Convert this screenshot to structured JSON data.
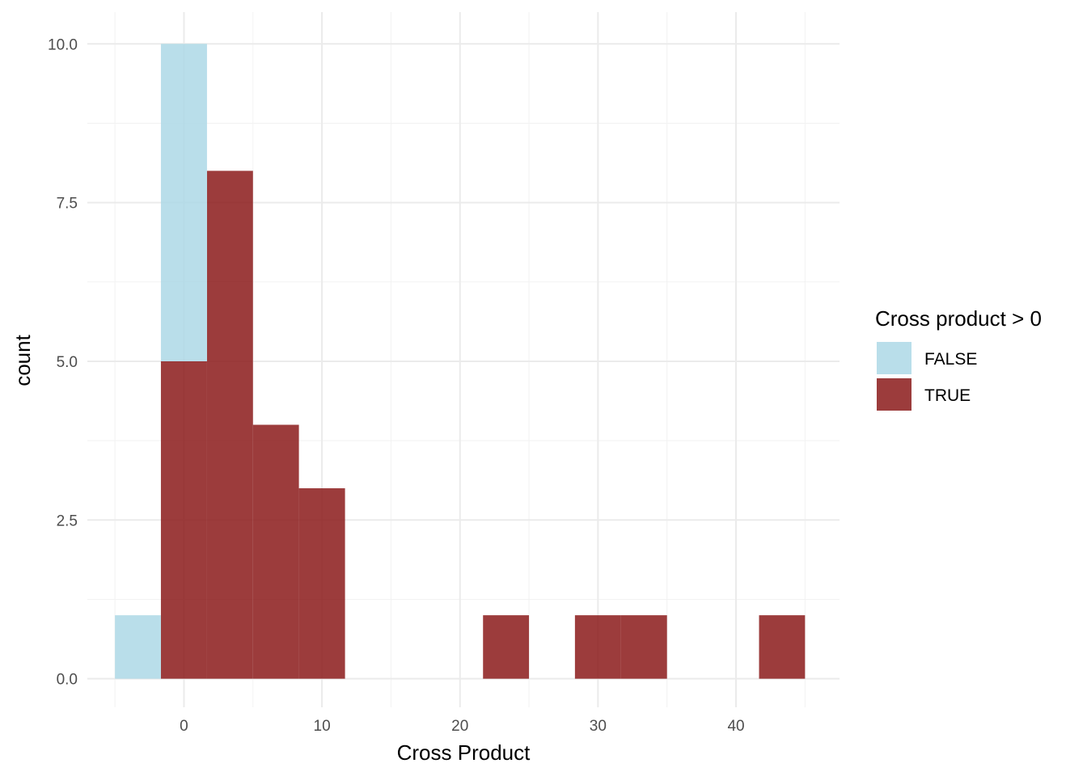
{
  "chart_data": {
    "type": "bar",
    "subtype": "histogram",
    "xlabel": "Cross Product",
    "ylabel": "count",
    "xlim": [
      -7,
      47.5
    ],
    "ylim": [
      -0.45,
      10.5
    ],
    "x_ticks": [
      0,
      10,
      20,
      30,
      40
    ],
    "y_ticks": [
      0.0,
      2.5,
      5.0,
      7.5,
      10.0
    ],
    "y_tick_labels": [
      "0.0",
      "2.5",
      "5.0",
      "7.5",
      "10.0"
    ],
    "x_tick_labels": [
      "0",
      "10",
      "20",
      "30",
      "40"
    ],
    "grid": true,
    "stacked": true,
    "legend": {
      "title": "Cross product > 0",
      "placement": "right"
    },
    "bins": [
      {
        "x0": -5.0,
        "x1": -1.67
      },
      {
        "x0": -1.67,
        "x1": 1.67
      },
      {
        "x0": 1.67,
        "x1": 5.0
      },
      {
        "x0": 5.0,
        "x1": 8.33
      },
      {
        "x0": 8.33,
        "x1": 11.67
      },
      {
        "x0": 11.67,
        "x1": 15.0
      },
      {
        "x0": 15.0,
        "x1": 18.33
      },
      {
        "x0": 18.33,
        "x1": 21.67
      },
      {
        "x0": 21.67,
        "x1": 25.0
      },
      {
        "x0": 25.0,
        "x1": 28.33
      },
      {
        "x0": 28.33,
        "x1": 31.67
      },
      {
        "x0": 31.67,
        "x1": 35.0
      },
      {
        "x0": 35.0,
        "x1": 38.33
      },
      {
        "x0": 38.33,
        "x1": 41.67
      },
      {
        "x0": 41.67,
        "x1": 45.0
      }
    ],
    "series": [
      {
        "name": "TRUE",
        "color": "#8b1a1a",
        "values": [
          0,
          5,
          8,
          4,
          3,
          0,
          0,
          0,
          1,
          0,
          1,
          1,
          0,
          0,
          1
        ]
      },
      {
        "name": "FALSE",
        "color": "#add8e6",
        "values": [
          1,
          5,
          0,
          0,
          0,
          0,
          0,
          0,
          0,
          0,
          0,
          0,
          0,
          0,
          0
        ]
      }
    ]
  }
}
